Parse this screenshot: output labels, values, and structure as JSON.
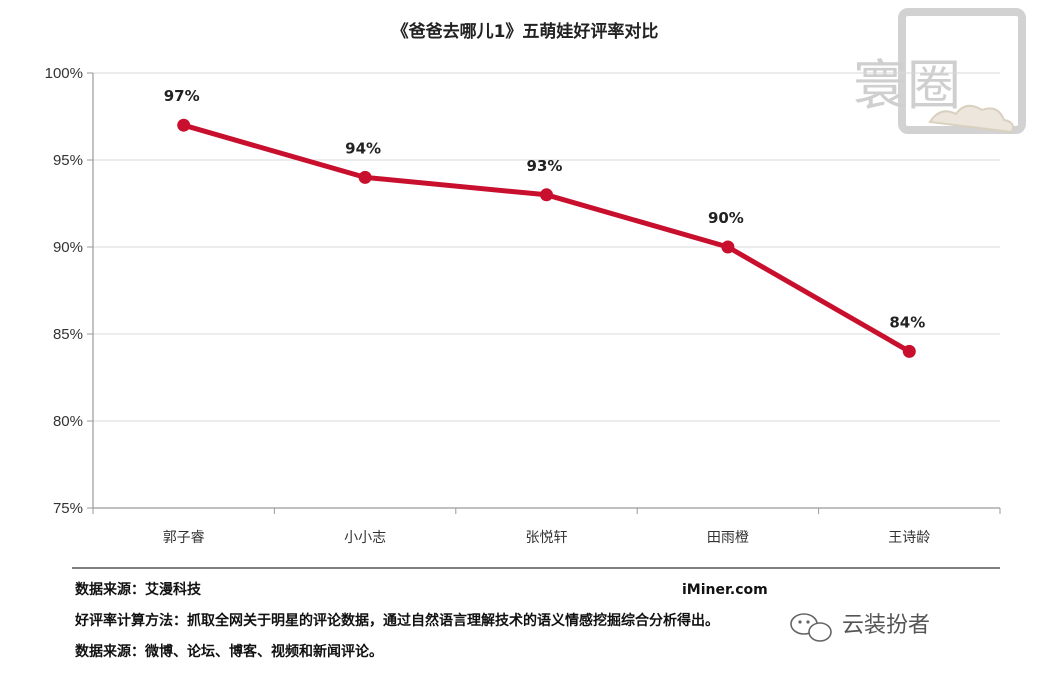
{
  "chart_data": {
    "type": "line",
    "title": "《爸爸去哪儿1》五萌娃好评率对比",
    "categories": [
      "郭子睿",
      "小小志",
      "张悦轩",
      "田雨橙",
      "王诗龄"
    ],
    "series": [
      {
        "values": [
          97,
          94,
          93,
          90,
          84
        ],
        "color": "#c8102e"
      }
    ],
    "data_labels": [
      "97%",
      "94%",
      "93%",
      "90%",
      "84%"
    ],
    "y_ticks": [
      75,
      80,
      85,
      90,
      95,
      100
    ],
    "y_tick_labels": [
      "75%",
      "80%",
      "85%",
      "90%",
      "95%",
      "100%"
    ],
    "ylim": [
      75,
      100
    ],
    "xlabel": "",
    "ylabel": "",
    "grid": true,
    "legend": "none"
  },
  "footer": {
    "source1": "数据来源：艾漫科技",
    "site": "iMiner.com",
    "method": "好评率计算方法：抓取全网关于明星的评论数据，通过自然语言理解技术的语义情感挖掘综合分析得出。",
    "source2": "数据来源：微博、论坛、博客、视频和新闻评论。"
  },
  "watermark": {
    "logo_text": "寰圈",
    "wechat_name": "云装扮者",
    "wechat_icon": "wechat-icon"
  },
  "colors": {
    "line": "#c8102e",
    "grid": "#d9d9d9",
    "axis": "#9a9a9a",
    "watermark": "#cfcfcf"
  }
}
